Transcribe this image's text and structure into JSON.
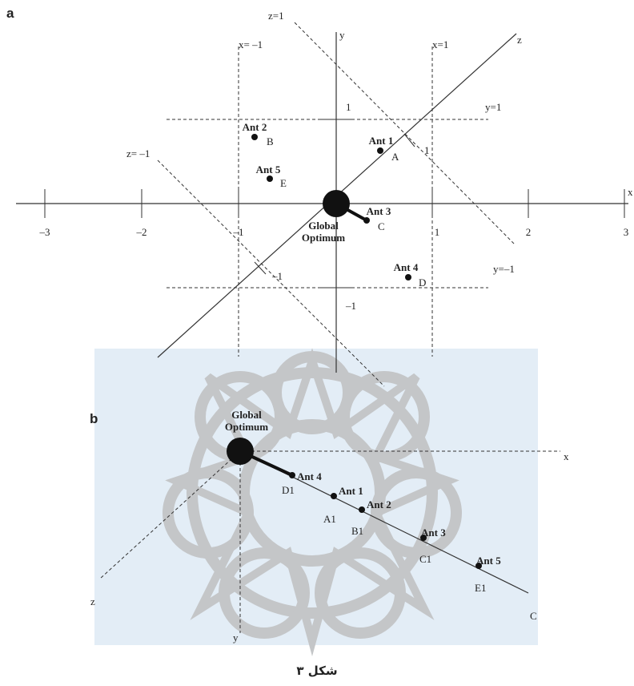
{
  "panel_a": {
    "label": "a",
    "axis_labels": {
      "x": "x",
      "y": "y",
      "z": "z"
    },
    "lines": {
      "z_pos": "z=1",
      "z_neg": "z= –1",
      "x_neg": "x= –1",
      "x_pos": "x=1",
      "y_pos": "y=1",
      "y_neg": "y=–1"
    },
    "x_ticks": [
      "–3",
      "–2",
      "–1",
      "1",
      "2",
      "3"
    ],
    "y_ticks": [
      "1",
      "–1"
    ],
    "z_ticks": [
      "1",
      "–1"
    ],
    "ants": [
      {
        "name": "Ant 1",
        "letter": "A"
      },
      {
        "name": "Ant 2",
        "letter": "B"
      },
      {
        "name": "Ant 3",
        "letter": "C"
      },
      {
        "name": "Ant 4",
        "letter": "D"
      },
      {
        "name": "Ant 5",
        "letter": "E"
      }
    ],
    "optimum": [
      "Global",
      "Optimum"
    ]
  },
  "panel_b": {
    "label": "b",
    "axis_labels": {
      "x": "x",
      "y": "y",
      "z": "z"
    },
    "line_label": "C",
    "ants": [
      {
        "name": "Ant 4",
        "letter": "D1"
      },
      {
        "name": "Ant 1",
        "letter": "A1"
      },
      {
        "name": "Ant 2",
        "letter": "B1"
      },
      {
        "name": "Ant 3",
        "letter": "C1"
      },
      {
        "name": "Ant 5",
        "letter": "E1"
      }
    ],
    "optimum": [
      "Global",
      "Optimum"
    ]
  },
  "caption": "شکل ۳"
}
